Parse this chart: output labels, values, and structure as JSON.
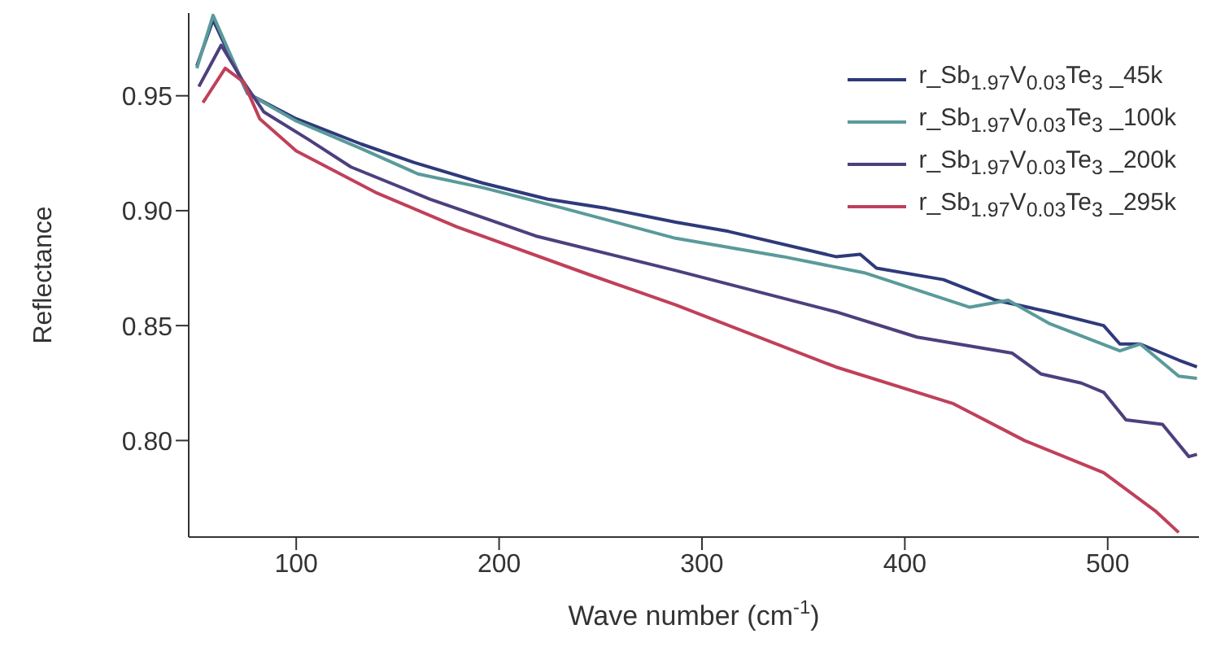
{
  "chart_data": {
    "type": "line",
    "xlabel": "Wave number (cm$^{-1}$)",
    "ylabel": "Reflectance",
    "xlim": [
      47,
      545
    ],
    "ylim": [
      0.758,
      0.986
    ],
    "xticks": [
      100,
      200,
      300,
      400,
      500
    ],
    "yticks": [
      {
        "value": 0.8,
        "label": "0.80"
      },
      {
        "value": 0.85,
        "label": "0.85"
      },
      {
        "value": 0.9,
        "label": "0.90"
      },
      {
        "value": 0.95,
        "label": "0.95"
      }
    ],
    "grid": false,
    "legend": "top right",
    "marker": "none",
    "line_style": "solid",
    "series": [
      {
        "name": "r_Sb$_{1.97}$V$_{0.03}$Te$_{3}$ _45k",
        "color": "#2e3a7a",
        "x": [
          51,
          59,
          76,
          100,
          132,
          158,
          192,
          224,
          253,
          287,
          313,
          366,
          378,
          386,
          419,
          445,
          471,
          498,
          506,
          516,
          535,
          544
        ],
        "values": [
          0.963,
          0.983,
          0.951,
          0.94,
          0.929,
          0.921,
          0.912,
          0.905,
          0.901,
          0.895,
          0.891,
          0.88,
          0.881,
          0.875,
          0.87,
          0.861,
          0.856,
          0.85,
          0.842,
          0.842,
          0.835,
          0.832
        ]
      },
      {
        "name": "r_Sb$_{1.97}$V$_{0.03}$Te$_{3}$ _100k",
        "color": "#5a9a9a",
        "x": [
          51,
          59,
          76,
          100,
          132,
          160,
          192,
          232,
          287,
          340,
          380,
          432,
          451,
          471,
          506,
          516,
          535,
          544
        ],
        "values": [
          0.962,
          0.985,
          0.951,
          0.939,
          0.927,
          0.916,
          0.91,
          0.901,
          0.888,
          0.88,
          0.873,
          0.858,
          0.861,
          0.851,
          0.839,
          0.842,
          0.828,
          0.827
        ]
      },
      {
        "name": "r_Sb$_{1.97}$V$_{0.03}$Te$_{3}$ _200k",
        "color": "#4e3f7e",
        "x": [
          52,
          63,
          74,
          84,
          106,
          127,
          166,
          218,
          287,
          366,
          406,
          453,
          467,
          487,
          498,
          509,
          527,
          540,
          544
        ],
        "values": [
          0.954,
          0.972,
          0.956,
          0.943,
          0.931,
          0.919,
          0.905,
          0.889,
          0.874,
          0.856,
          0.845,
          0.838,
          0.829,
          0.825,
          0.821,
          0.809,
          0.807,
          0.793,
          0.794
        ]
      },
      {
        "name": "r_Sb$_{1.97}$V$_{0.03}$Te$_{3}$ _295k",
        "color": "#c0405a",
        "x": [
          54,
          65,
          74,
          82,
          100,
          139,
          179,
          245,
          287,
          366,
          424,
          459,
          498,
          524,
          535
        ],
        "values": [
          0.947,
          0.962,
          0.956,
          0.94,
          0.926,
          0.908,
          0.893,
          0.872,
          0.859,
          0.832,
          0.816,
          0.8,
          0.786,
          0.769,
          0.76
        ]
      }
    ]
  }
}
